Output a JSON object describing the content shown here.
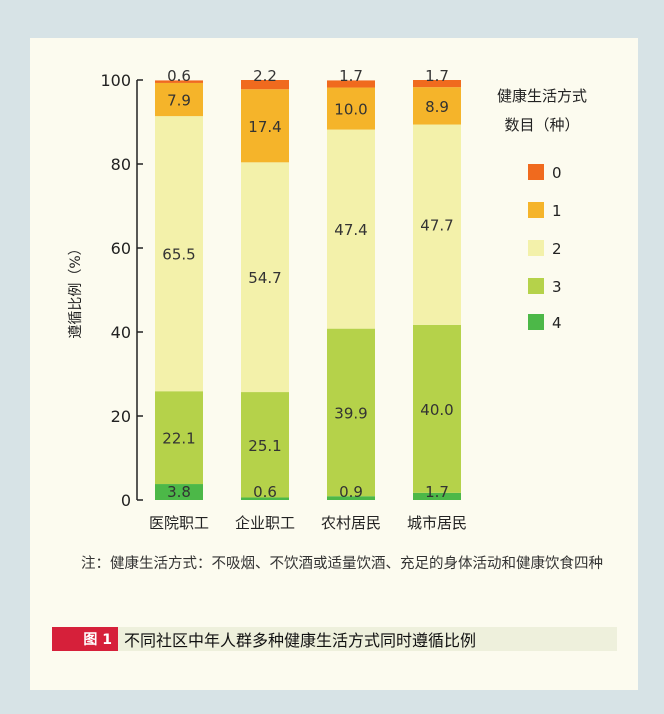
{
  "chart_data": {
    "type": "bar",
    "stacked": true,
    "categories": [
      "医院职工",
      "企业职工",
      "农村居民",
      "城市居民"
    ],
    "ylabel": "遵循比例（%）",
    "ylim": [
      0,
      100
    ],
    "yticks": [
      0,
      20,
      40,
      60,
      80,
      100
    ],
    "legend_title": [
      "健康生活方式",
      "数目（种）"
    ],
    "legend_position": "right",
    "series": [
      {
        "name": "4",
        "color": "#4cb848",
        "values": [
          3.8,
          0.6,
          0.9,
          1.7
        ]
      },
      {
        "name": "3",
        "color": "#b5d24a",
        "values": [
          22.1,
          25.1,
          39.9,
          40.0
        ]
      },
      {
        "name": "2",
        "color": "#f3f1aa",
        "values": [
          65.5,
          54.7,
          47.4,
          47.7
        ]
      },
      {
        "name": "1",
        "color": "#f5b42a",
        "values": [
          7.9,
          17.4,
          10.0,
          8.9
        ]
      },
      {
        "name": "0",
        "color": "#f06a1e",
        "values": [
          0.6,
          2.2,
          1.7,
          1.7
        ]
      }
    ]
  },
  "note": "注：健康生活方式：不吸烟、不饮酒或适量饮酒、充足的身体活动和健康饮食四种",
  "figure_label": "图 1",
  "caption": "不同社区中年人群多种健康生活方式同时遵循比例"
}
